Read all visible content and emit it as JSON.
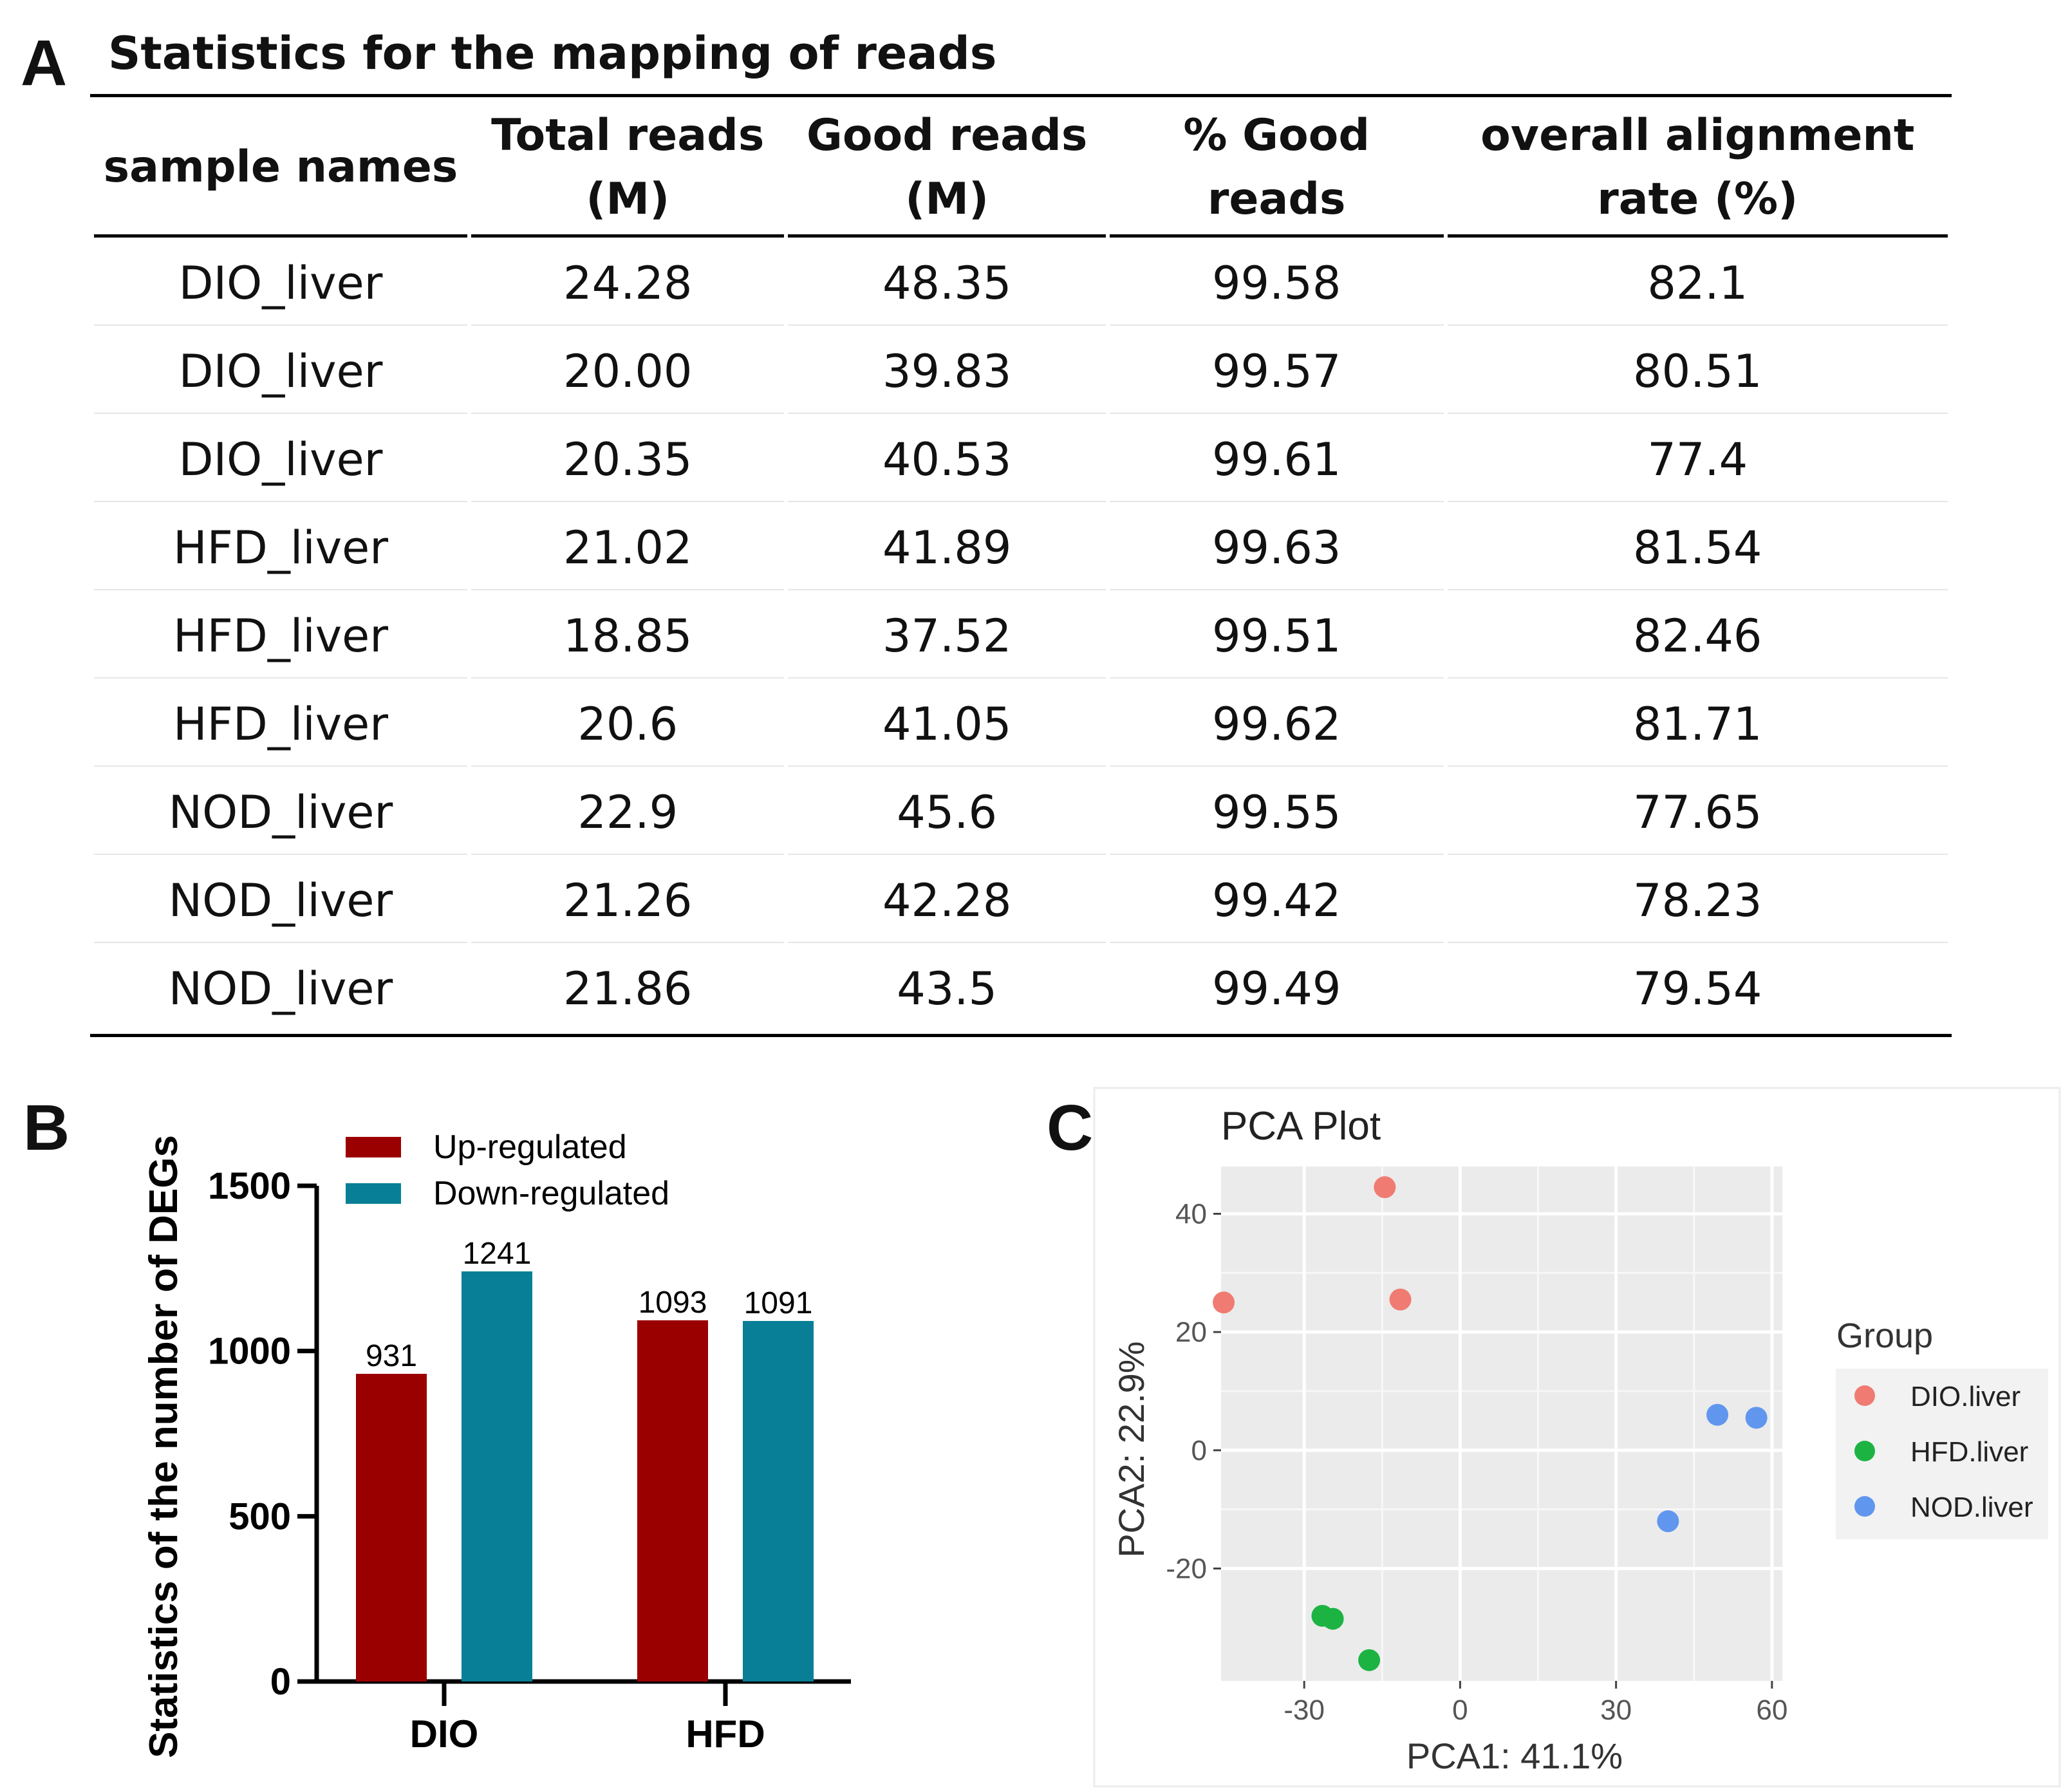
{
  "panels": {
    "a": "A",
    "b": "B",
    "c": "C"
  },
  "table": {
    "title": "Statistics for the mapping of reads",
    "headers": [
      {
        "line1": "sample names",
        "line2": ""
      },
      {
        "line1": "Total reads",
        "line2": "(M)"
      },
      {
        "line1": "Good reads",
        "line2": "(M)"
      },
      {
        "line1": "% Good reads",
        "line2": ""
      },
      {
        "line1": "overall alignment",
        "line2": "rate (%)"
      }
    ],
    "rows": [
      [
        "DIO_liver",
        "24.28",
        "48.35",
        "99.58",
        "82.1"
      ],
      [
        "DIO_liver",
        "20.00",
        "39.83",
        "99.57",
        "80.51"
      ],
      [
        "DIO_liver",
        "20.35",
        "40.53",
        "99.61",
        "77.4"
      ],
      [
        "HFD_liver",
        "21.02",
        "41.89",
        "99.63",
        "81.54"
      ],
      [
        "HFD_liver",
        "18.85",
        "37.52",
        "99.51",
        "82.46"
      ],
      [
        "HFD_liver",
        "20.6",
        "41.05",
        "99.62",
        "81.71"
      ],
      [
        "NOD_liver",
        "22.9",
        "45.6",
        "99.55",
        "77.65"
      ],
      [
        "NOD_liver",
        "21.26",
        "42.28",
        "99.42",
        "78.23"
      ],
      [
        "NOD_liver",
        "21.86",
        "43.5",
        "99.49",
        "79.54"
      ]
    ]
  },
  "chart_data": [
    {
      "type": "bar",
      "title": "",
      "xlabel": "",
      "ylabel": "Statistics of the number of DEGs",
      "categories": [
        "DIO",
        "HFD"
      ],
      "series": [
        {
          "name": "Up-regulated",
          "values": [
            931,
            1093
          ],
          "color": "#9b0000"
        },
        {
          "name": "Down-regulated",
          "values": [
            1241,
            1091
          ],
          "color": "#087f96"
        }
      ],
      "yticks": [
        0,
        500,
        1000,
        1500
      ],
      "ylim": [
        0,
        1500
      ],
      "grid": false,
      "legend": "top-left"
    },
    {
      "type": "scatter",
      "title": "PCA Plot",
      "xlabel": "PCA1: 41.1%",
      "ylabel": "PCA2: 22.9%",
      "xlim": [
        -46,
        62
      ],
      "ylim": [
        -39,
        48
      ],
      "xticks": [
        -30,
        0,
        30,
        60
      ],
      "yticks": [
        -20,
        0,
        20,
        40
      ],
      "grid": true,
      "legend": "right",
      "legend_title": "Group",
      "series": [
        {
          "name": "DIO.liver",
          "color": "#f07b72",
          "points": [
            [
              -45.5,
              25
            ],
            [
              -14.5,
              44.5
            ],
            [
              -11.5,
              25.5
            ]
          ]
        },
        {
          "name": "HFD.liver",
          "color": "#1db343",
          "points": [
            [
              -26.5,
              -28
            ],
            [
              -24.5,
              -28.5
            ],
            [
              -17.5,
              -35.5
            ]
          ]
        },
        {
          "name": "NOD.liver",
          "color": "#6096ee",
          "points": [
            [
              49.5,
              6
            ],
            [
              57,
              5.5
            ],
            [
              40,
              -12
            ]
          ]
        }
      ]
    }
  ]
}
